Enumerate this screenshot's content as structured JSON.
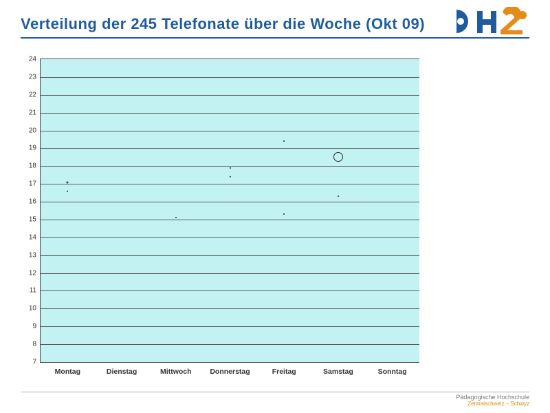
{
  "title": "Verteilung  der 245 Telefonate über die Woche (Okt 09)",
  "logo": {
    "p_color": "#1f5c9e",
    "h_color": "#1f5c9e",
    "z_color": "#e58b1a",
    "circle_color": "#e58b1a"
  },
  "chart": {
    "type": "bubble",
    "background_color": "#c3f2f2",
    "grid_color": "#5a5a5a",
    "border_color": "#4a4a4a",
    "ylim": [
      7,
      24
    ],
    "ytick_step": 1,
    "yticks": [
      7,
      8,
      9,
      10,
      11,
      12,
      13,
      14,
      15,
      16,
      17,
      18,
      19,
      20,
      21,
      22,
      23,
      24
    ],
    "categories": [
      "Montag",
      "Dienstag",
      "Mittwoch",
      "Donnerstag",
      "Freitag",
      "Samstag",
      "Sonntag"
    ],
    "bubble_stroke": "#2a2a2a",
    "bubble_fill": "transparent",
    "points": [
      {
        "x": 0,
        "y": 17.1,
        "r": 1.5
      },
      {
        "x": 0,
        "y": 16.6,
        "r": 0.6
      },
      {
        "x": 2,
        "y": 15.1,
        "r": 0.6
      },
      {
        "x": 3,
        "y": 17.9,
        "r": 0.6
      },
      {
        "x": 3,
        "y": 17.4,
        "r": 1.2
      },
      {
        "x": 4,
        "y": 19.4,
        "r": 0.6
      },
      {
        "x": 4,
        "y": 15.3,
        "r": 0.6
      },
      {
        "x": 5,
        "y": 16.3,
        "r": 0.6
      },
      {
        "x": 5,
        "y": 18.5,
        "r": 7
      }
    ],
    "label_fontsize": 10,
    "xlabel_fontsize": 10.5
  },
  "footer": {
    "line1": "Pädagogische Hochschule",
    "line2": "Zentralschweiz – Schwyz"
  }
}
